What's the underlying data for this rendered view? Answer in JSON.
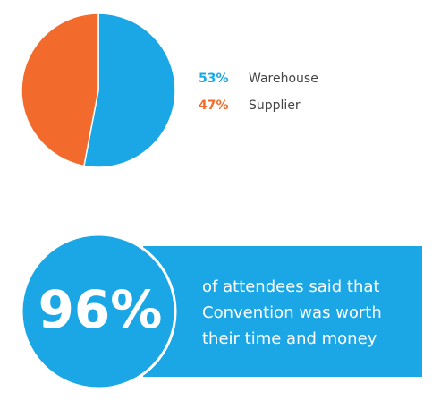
{
  "chart_data": {
    "type": "pie",
    "categories": [
      "Warehouse",
      "Supplier"
    ],
    "values": [
      53,
      47
    ],
    "value_labels": [
      "53%",
      "47%"
    ],
    "colors": [
      "#1ba7e5",
      "#f26b2d"
    ]
  },
  "callout": {
    "stat": "96%",
    "lines": [
      "of attendees said that",
      "Convention was worth",
      "their time and money"
    ]
  }
}
